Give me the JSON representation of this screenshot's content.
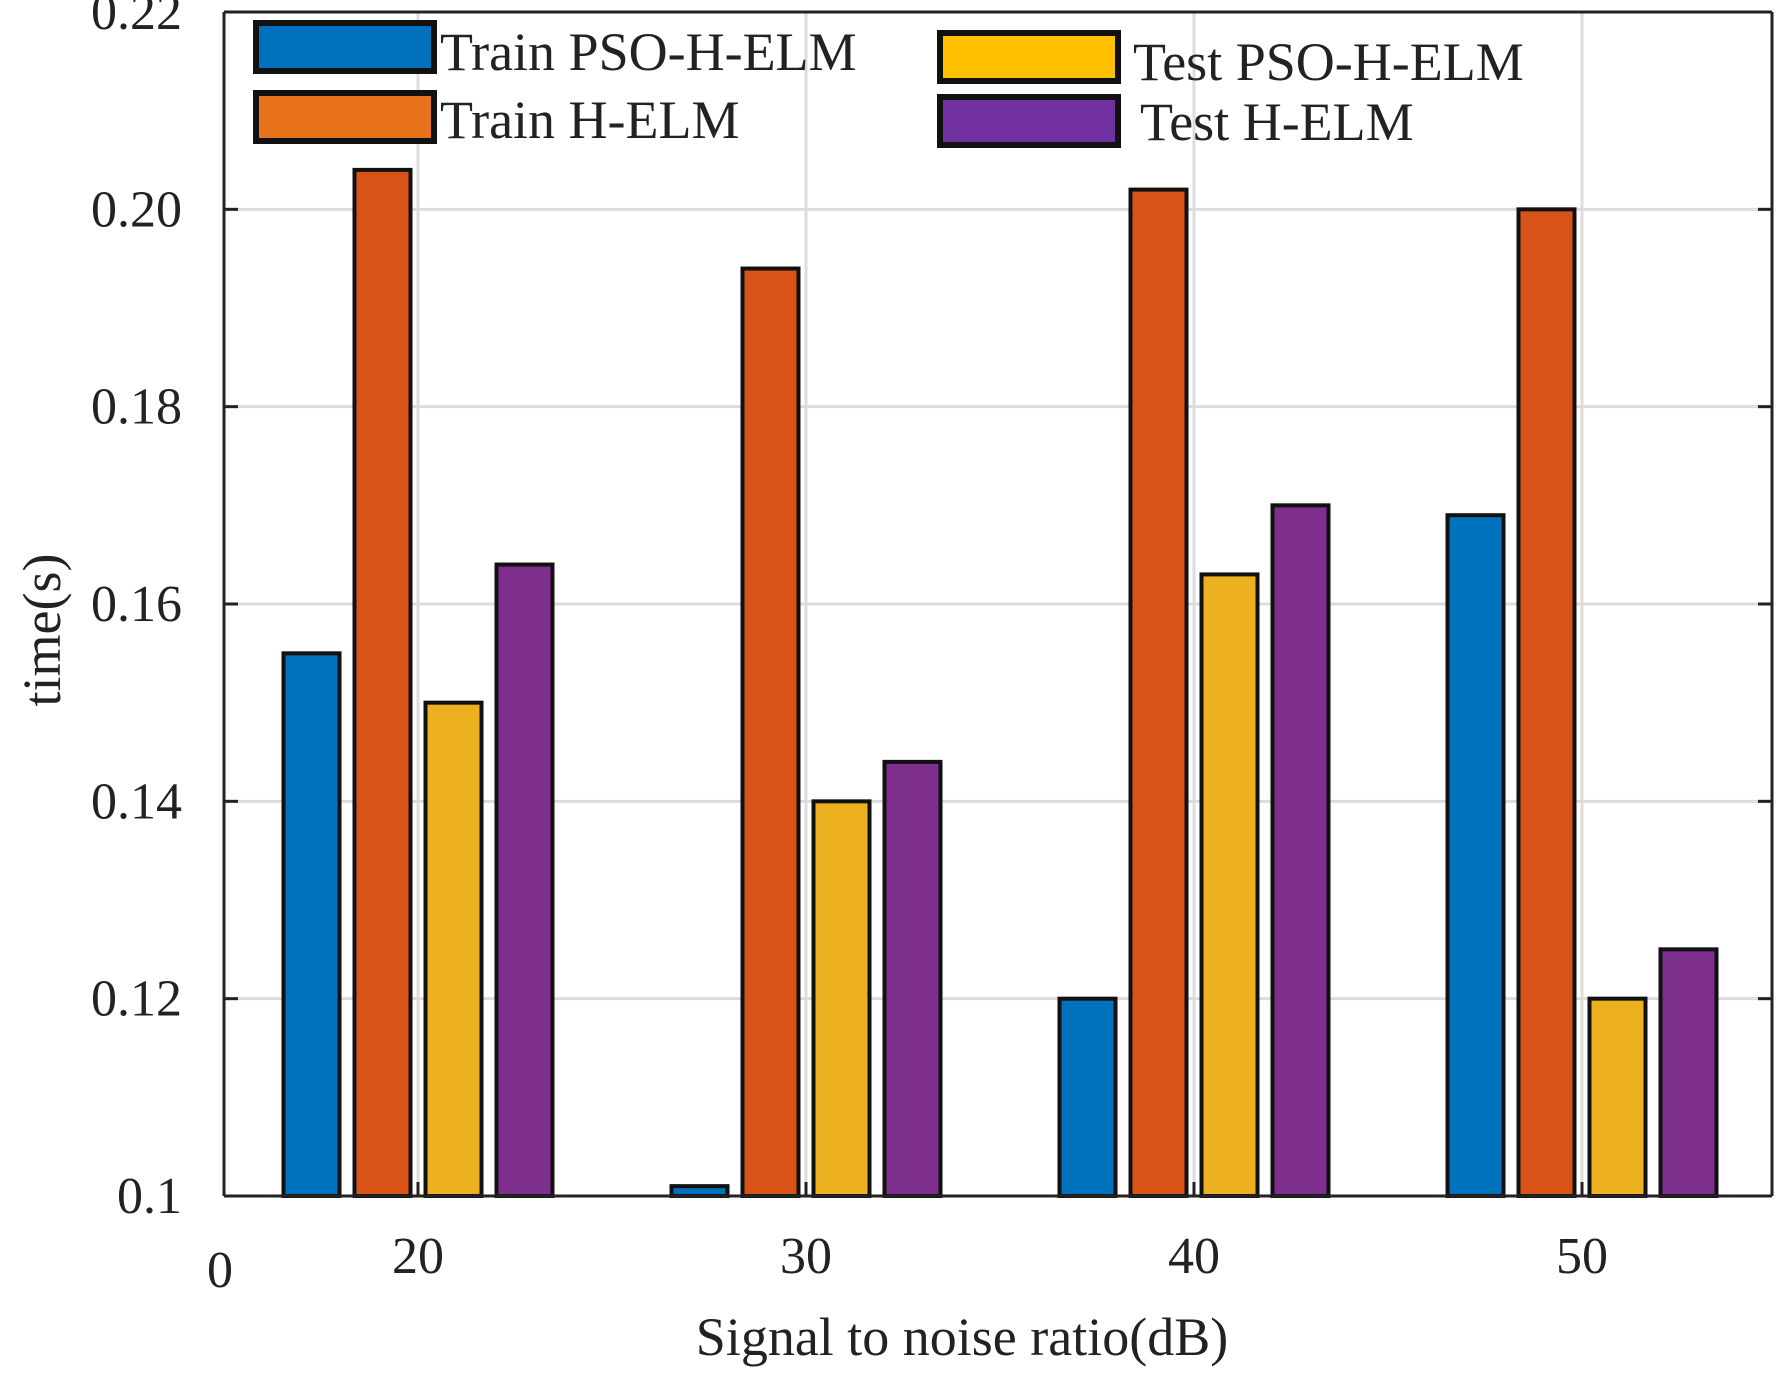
{
  "chart_data": {
    "type": "bar",
    "title": "",
    "xlabel": "Signal to noise ratio(dB)",
    "ylabel": "time(s)",
    "categories": [
      "20",
      "30",
      "40",
      "50"
    ],
    "x_extra_tick": "0",
    "ylim": [
      0.1,
      0.22
    ],
    "yticks": [
      "0.1",
      "0.12",
      "0.14",
      "0.16",
      "0.18",
      "0.20",
      "0.22"
    ],
    "grid": true,
    "legend_position": "top",
    "series": [
      {
        "name": "Train PSO-H-ELM",
        "color": "#0072BD",
        "values": [
          0.155,
          0.101,
          0.12,
          0.169
        ]
      },
      {
        "name": "Train H-ELM",
        "color": "#D95319",
        "values": [
          0.204,
          0.194,
          0.202,
          0.2
        ]
      },
      {
        "name": "Test PSO-H-ELM",
        "color": "#EDB120",
        "values": [
          0.15,
          0.14,
          0.163,
          0.12
        ]
      },
      {
        "name": "Test H-ELM",
        "color": "#7E2F8E",
        "values": [
          0.164,
          0.144,
          0.17,
          0.125
        ]
      }
    ],
    "legend_colors": [
      "#0072BD",
      "#E8721C",
      "#FFC000",
      "#7030A0"
    ]
  }
}
